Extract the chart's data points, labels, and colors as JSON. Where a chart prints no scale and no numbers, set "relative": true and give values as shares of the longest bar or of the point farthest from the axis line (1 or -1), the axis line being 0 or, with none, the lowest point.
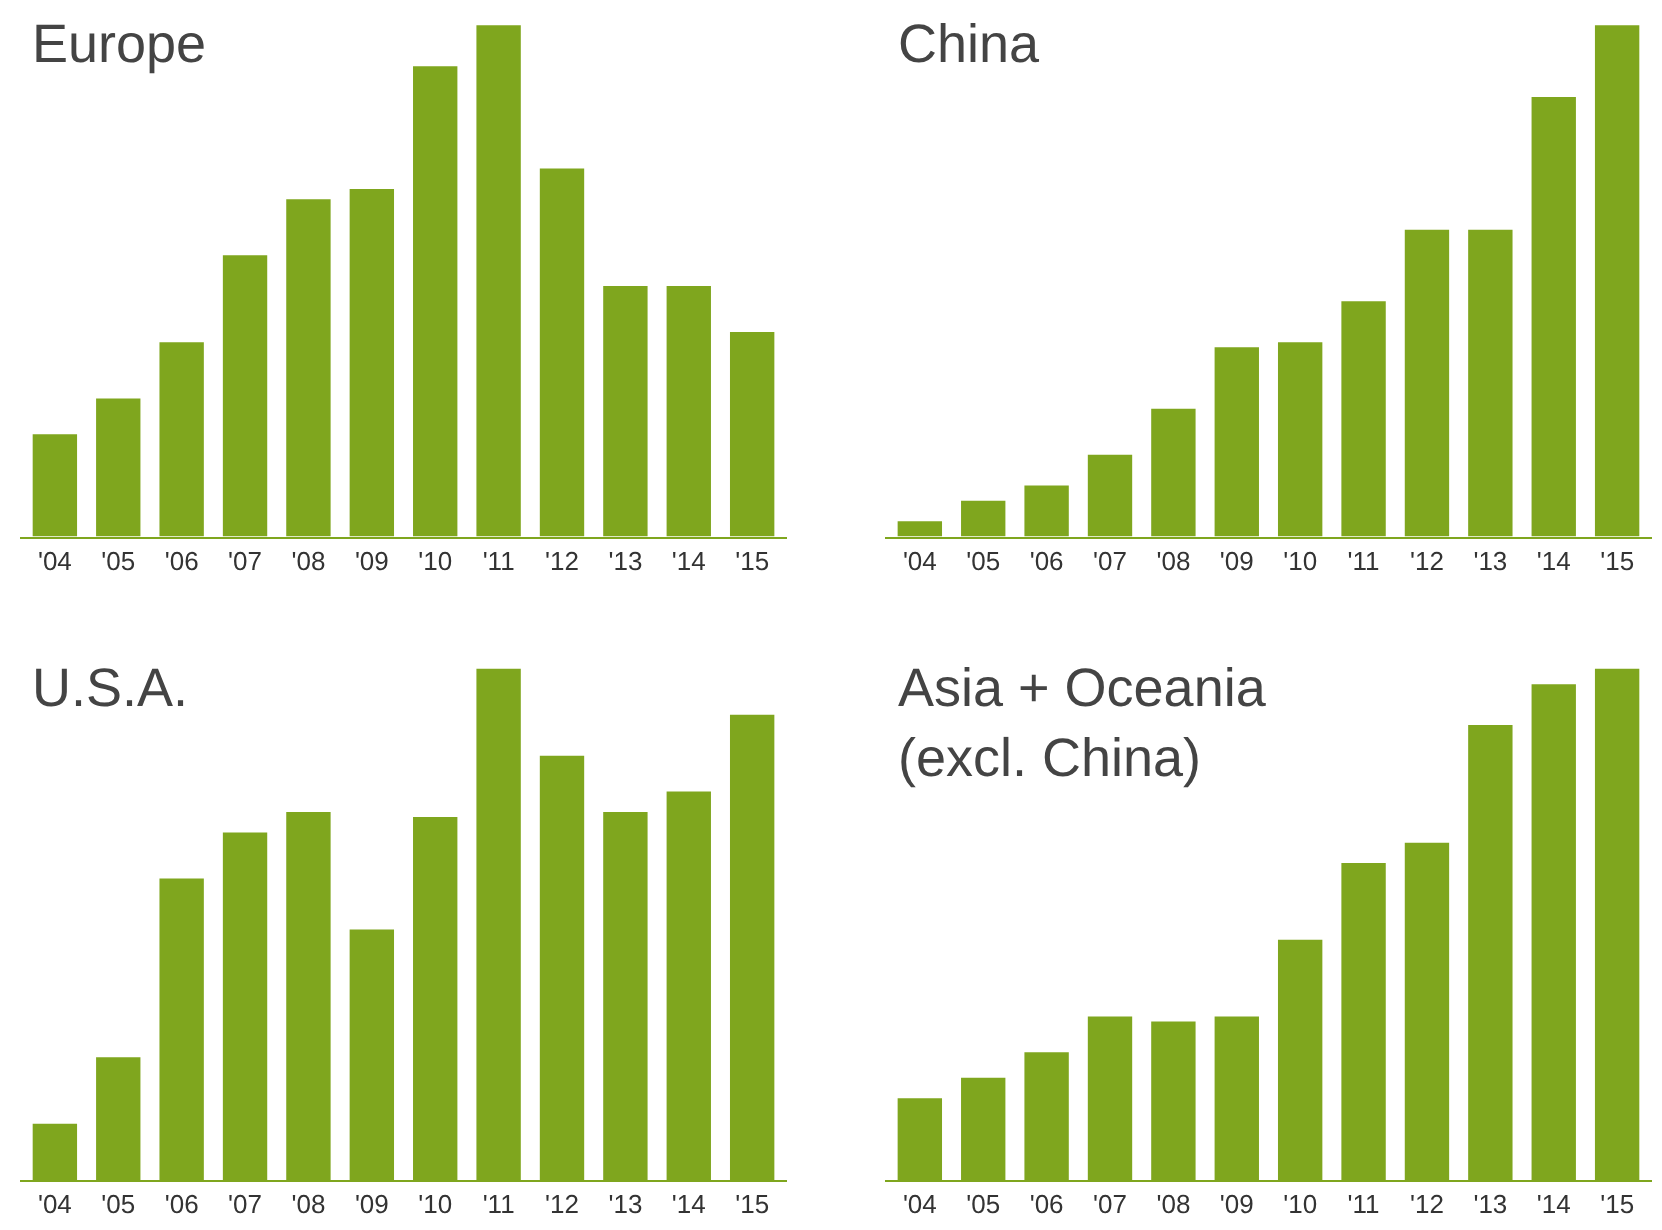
{
  "chart_data": [
    {
      "type": "bar",
      "title": "Europe",
      "relative": true,
      "color": "#7fa61e",
      "categories": [
        "'04",
        "'05",
        "'06",
        "'07",
        "'08",
        "'09",
        "'10",
        "'11",
        "'12",
        "'13",
        "'14",
        "'15"
      ],
      "values": [
        0.2,
        0.27,
        0.38,
        0.55,
        0.66,
        0.68,
        0.92,
        1,
        0.72,
        0.49,
        0.49,
        0.4
      ]
    },
    {
      "type": "bar",
      "title": "China",
      "relative": true,
      "color": "#7fa61e",
      "categories": [
        "'04",
        "'05",
        "'06",
        "'07",
        "'08",
        "'09",
        "'10",
        "'11",
        "'12",
        "'13",
        "'14",
        "'15"
      ],
      "values": [
        0.03,
        0.07,
        0.1,
        0.16,
        0.25,
        0.37,
        0.38,
        0.46,
        0.6,
        0.6,
        0.86,
        1
      ]
    },
    {
      "type": "bar",
      "title": "U.S.A.",
      "relative": true,
      "color": "#7fa61e",
      "categories": [
        "'04",
        "'05",
        "'06",
        "'07",
        "'08",
        "'09",
        "'10",
        "'11",
        "'12",
        "'13",
        "'14",
        "'15"
      ],
      "values": [
        0.11,
        0.24,
        0.59,
        0.68,
        0.72,
        0.49,
        0.71,
        1,
        0.83,
        0.72,
        0.76,
        0.91
      ]
    },
    {
      "type": "bar",
      "title": "Asia + Oceania\n(excl. China)",
      "relative": true,
      "color": "#7fa61e",
      "categories": [
        "'04",
        "'05",
        "'06",
        "'07",
        "'08",
        "'09",
        "'10",
        "'11",
        "'12",
        "'13",
        "'14",
        "'15"
      ],
      "values": [
        0.16,
        0.2,
        0.25,
        0.32,
        0.31,
        0.32,
        0.47,
        0.62,
        0.66,
        0.89,
        0.97,
        1
      ]
    }
  ]
}
